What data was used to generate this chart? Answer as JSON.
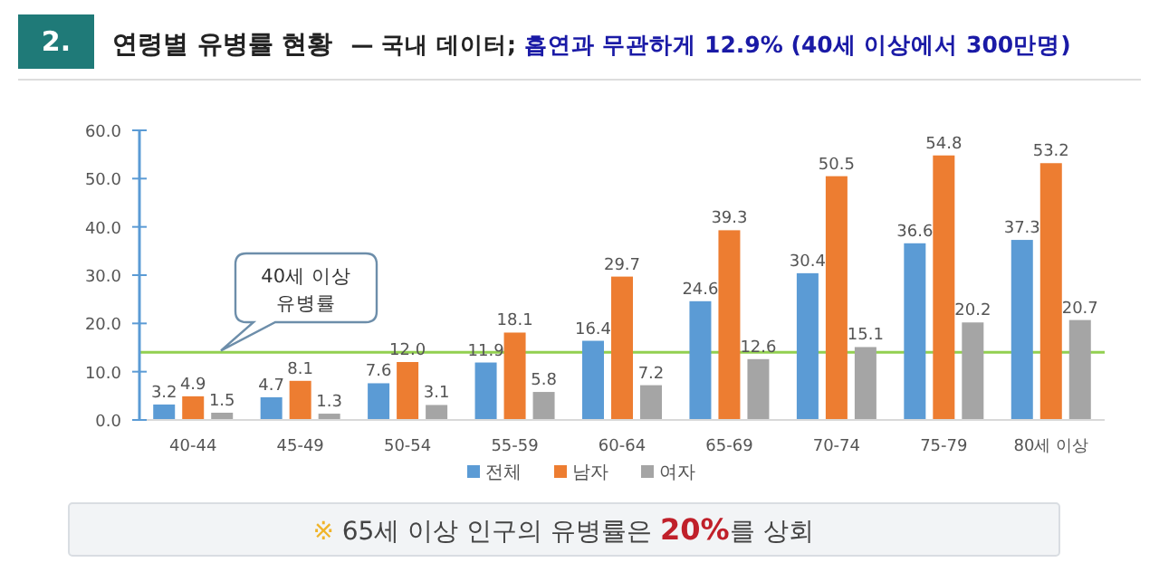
{
  "chart_data": {
    "type": "bar",
    "title": "연령별 유병률 현황",
    "subtitle": "— 국내 데이터; 흡연과 무관하게 12.9% (40세 이상에서 300만명)",
    "categories": [
      "40-44",
      "45-49",
      "50-54",
      "55-59",
      "60-64",
      "65-69",
      "70-74",
      "75-79",
      "80세 이상"
    ],
    "series": [
      {
        "name": "전체",
        "color": "#5b9bd5",
        "values": [
          3.2,
          4.7,
          7.6,
          11.9,
          16.4,
          24.6,
          30.4,
          36.6,
          37.3
        ],
        "value_labels": [
          "3.2",
          "4.7",
          "7.6",
          "11.9",
          "16.4",
          "24.6",
          "30.4",
          "36.6",
          "37.3"
        ]
      },
      {
        "name": "남자",
        "color": "#ed7d31",
        "values": [
          4.9,
          8.1,
          12.0,
          18.1,
          29.7,
          39.3,
          50.5,
          54.8,
          53.2
        ],
        "value_labels": [
          "4.9",
          "8.1",
          "12.0",
          "18.1",
          "29.7",
          "39.3",
          "50.5",
          "54.8",
          "53.2"
        ]
      },
      {
        "name": "여자",
        "color": "#a5a5a5",
        "values": [
          1.5,
          1.3,
          3.1,
          5.8,
          7.2,
          12.6,
          15.1,
          20.2,
          20.7
        ],
        "value_labels": [
          "1.5",
          "1.3",
          "3.1",
          "5.8",
          "7.2",
          "12.6",
          "15.1",
          "20.2",
          "20.7"
        ]
      }
    ],
    "ylim": [
      0,
      60
    ],
    "yticks": [
      {
        "value": 0,
        "label": "0.0"
      },
      {
        "value": 10,
        "label": "10.0"
      },
      {
        "value": 20,
        "label": "20.0"
      },
      {
        "value": 30,
        "label": "30.0"
      },
      {
        "value": 40,
        "label": "40.0"
      },
      {
        "value": 50,
        "label": "50.0"
      },
      {
        "value": 60,
        "label": "60.0"
      }
    ],
    "legend": "bottom",
    "grid": false,
    "ref_lines": [
      {
        "axis": "y",
        "value": 14,
        "label": "40세 이상 유병률",
        "color": "#92d050"
      }
    ],
    "annotations": [
      "2.",
      "※ 65세 이상 인구의 유병률은 20%를 상회"
    ]
  }
}
